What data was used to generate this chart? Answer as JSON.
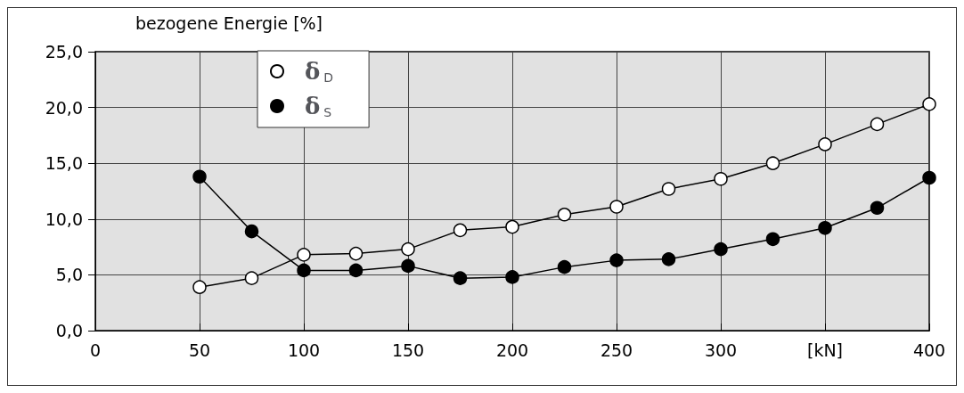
{
  "chart_data": {
    "type": "line",
    "ylabel": "bezogene Energie [%]",
    "x": [
      50,
      75,
      100,
      125,
      150,
      175,
      200,
      225,
      250,
      275,
      300,
      325,
      350,
      375,
      400
    ],
    "series": [
      {
        "name": "δ$_{D}$",
        "color": "#ffffff",
        "values": [
          3.9,
          4.7,
          6.8,
          6.9,
          7.3,
          9.0,
          9.3,
          10.4,
          11.1,
          12.7,
          13.6,
          15.0,
          16.7,
          18.5,
          20.3
        ]
      },
      {
        "name": "δ$_{S}$",
        "color": "#000000",
        "values": [
          13.8,
          8.9,
          5.4,
          5.4,
          5.8,
          4.7,
          4.8,
          5.7,
          6.3,
          6.4,
          7.3,
          8.2,
          9.2,
          11.0,
          13.7
        ]
      }
    ],
    "xlim": [
      0,
      400
    ],
    "xticks": [
      0,
      50,
      100,
      150,
      200,
      250,
      300,
      {
        "value": 350,
        "label": "[kN]"
      },
      400
    ],
    "ylim": [
      0,
      25
    ],
    "yticks": [
      {
        "value": 0,
        "label": "0,0"
      },
      {
        "value": 5,
        "label": "5,0"
      },
      {
        "value": 10,
        "label": "10,0"
      },
      {
        "value": 15,
        "label": "15,0"
      },
      {
        "value": 20,
        "label": "20,0"
      },
      {
        "value": 25,
        "label": "25,0"
      }
    ],
    "grid": true,
    "legend": "top",
    "marker": "circle",
    "line_style": "solid"
  }
}
